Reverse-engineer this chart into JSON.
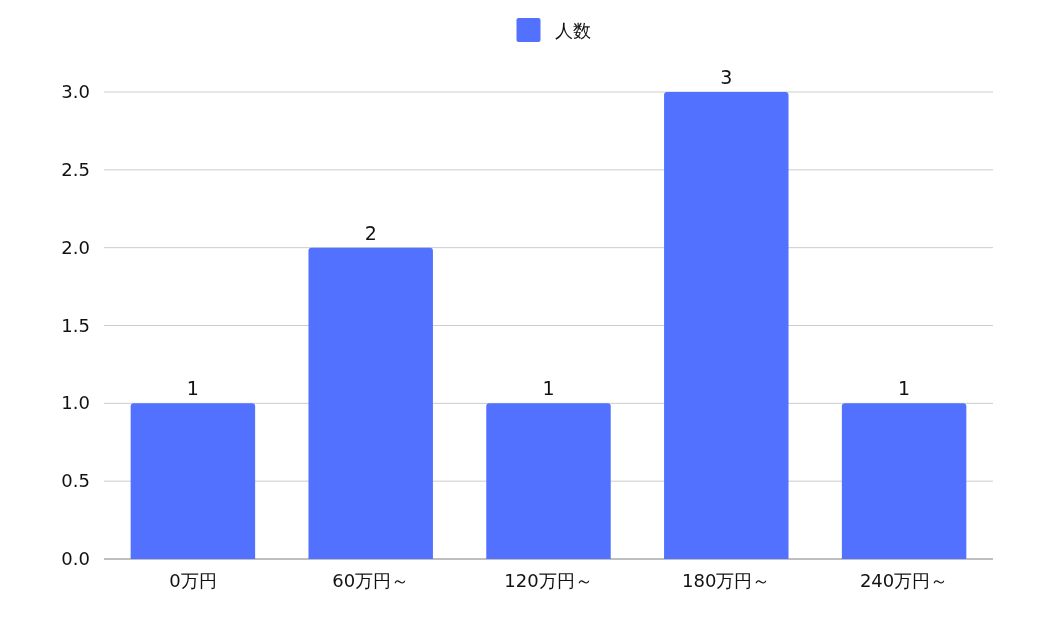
{
  "chart_data": {
    "type": "bar",
    "categories": [
      "0万円",
      "60万円～",
      "120万円～",
      "180万円～",
      "240万円～"
    ],
    "series": [
      {
        "name": "人数",
        "color": "#5271ff",
        "values": [
          1,
          2,
          1,
          3,
          1
        ]
      }
    ],
    "ylim": [
      0,
      3
    ],
    "yticks": [
      {
        "value": 0,
        "label": "0.0"
      },
      {
        "value": 0.5,
        "label": "0.5"
      },
      {
        "value": 1,
        "label": "1.0"
      },
      {
        "value": 1.5,
        "label": "1.5"
      },
      {
        "value": 2,
        "label": "2.0"
      },
      {
        "value": 2.5,
        "label": "2.5"
      },
      {
        "value": 3,
        "label": "3.0"
      }
    ],
    "grid": "y",
    "legend": "top",
    "data_labels": true
  }
}
